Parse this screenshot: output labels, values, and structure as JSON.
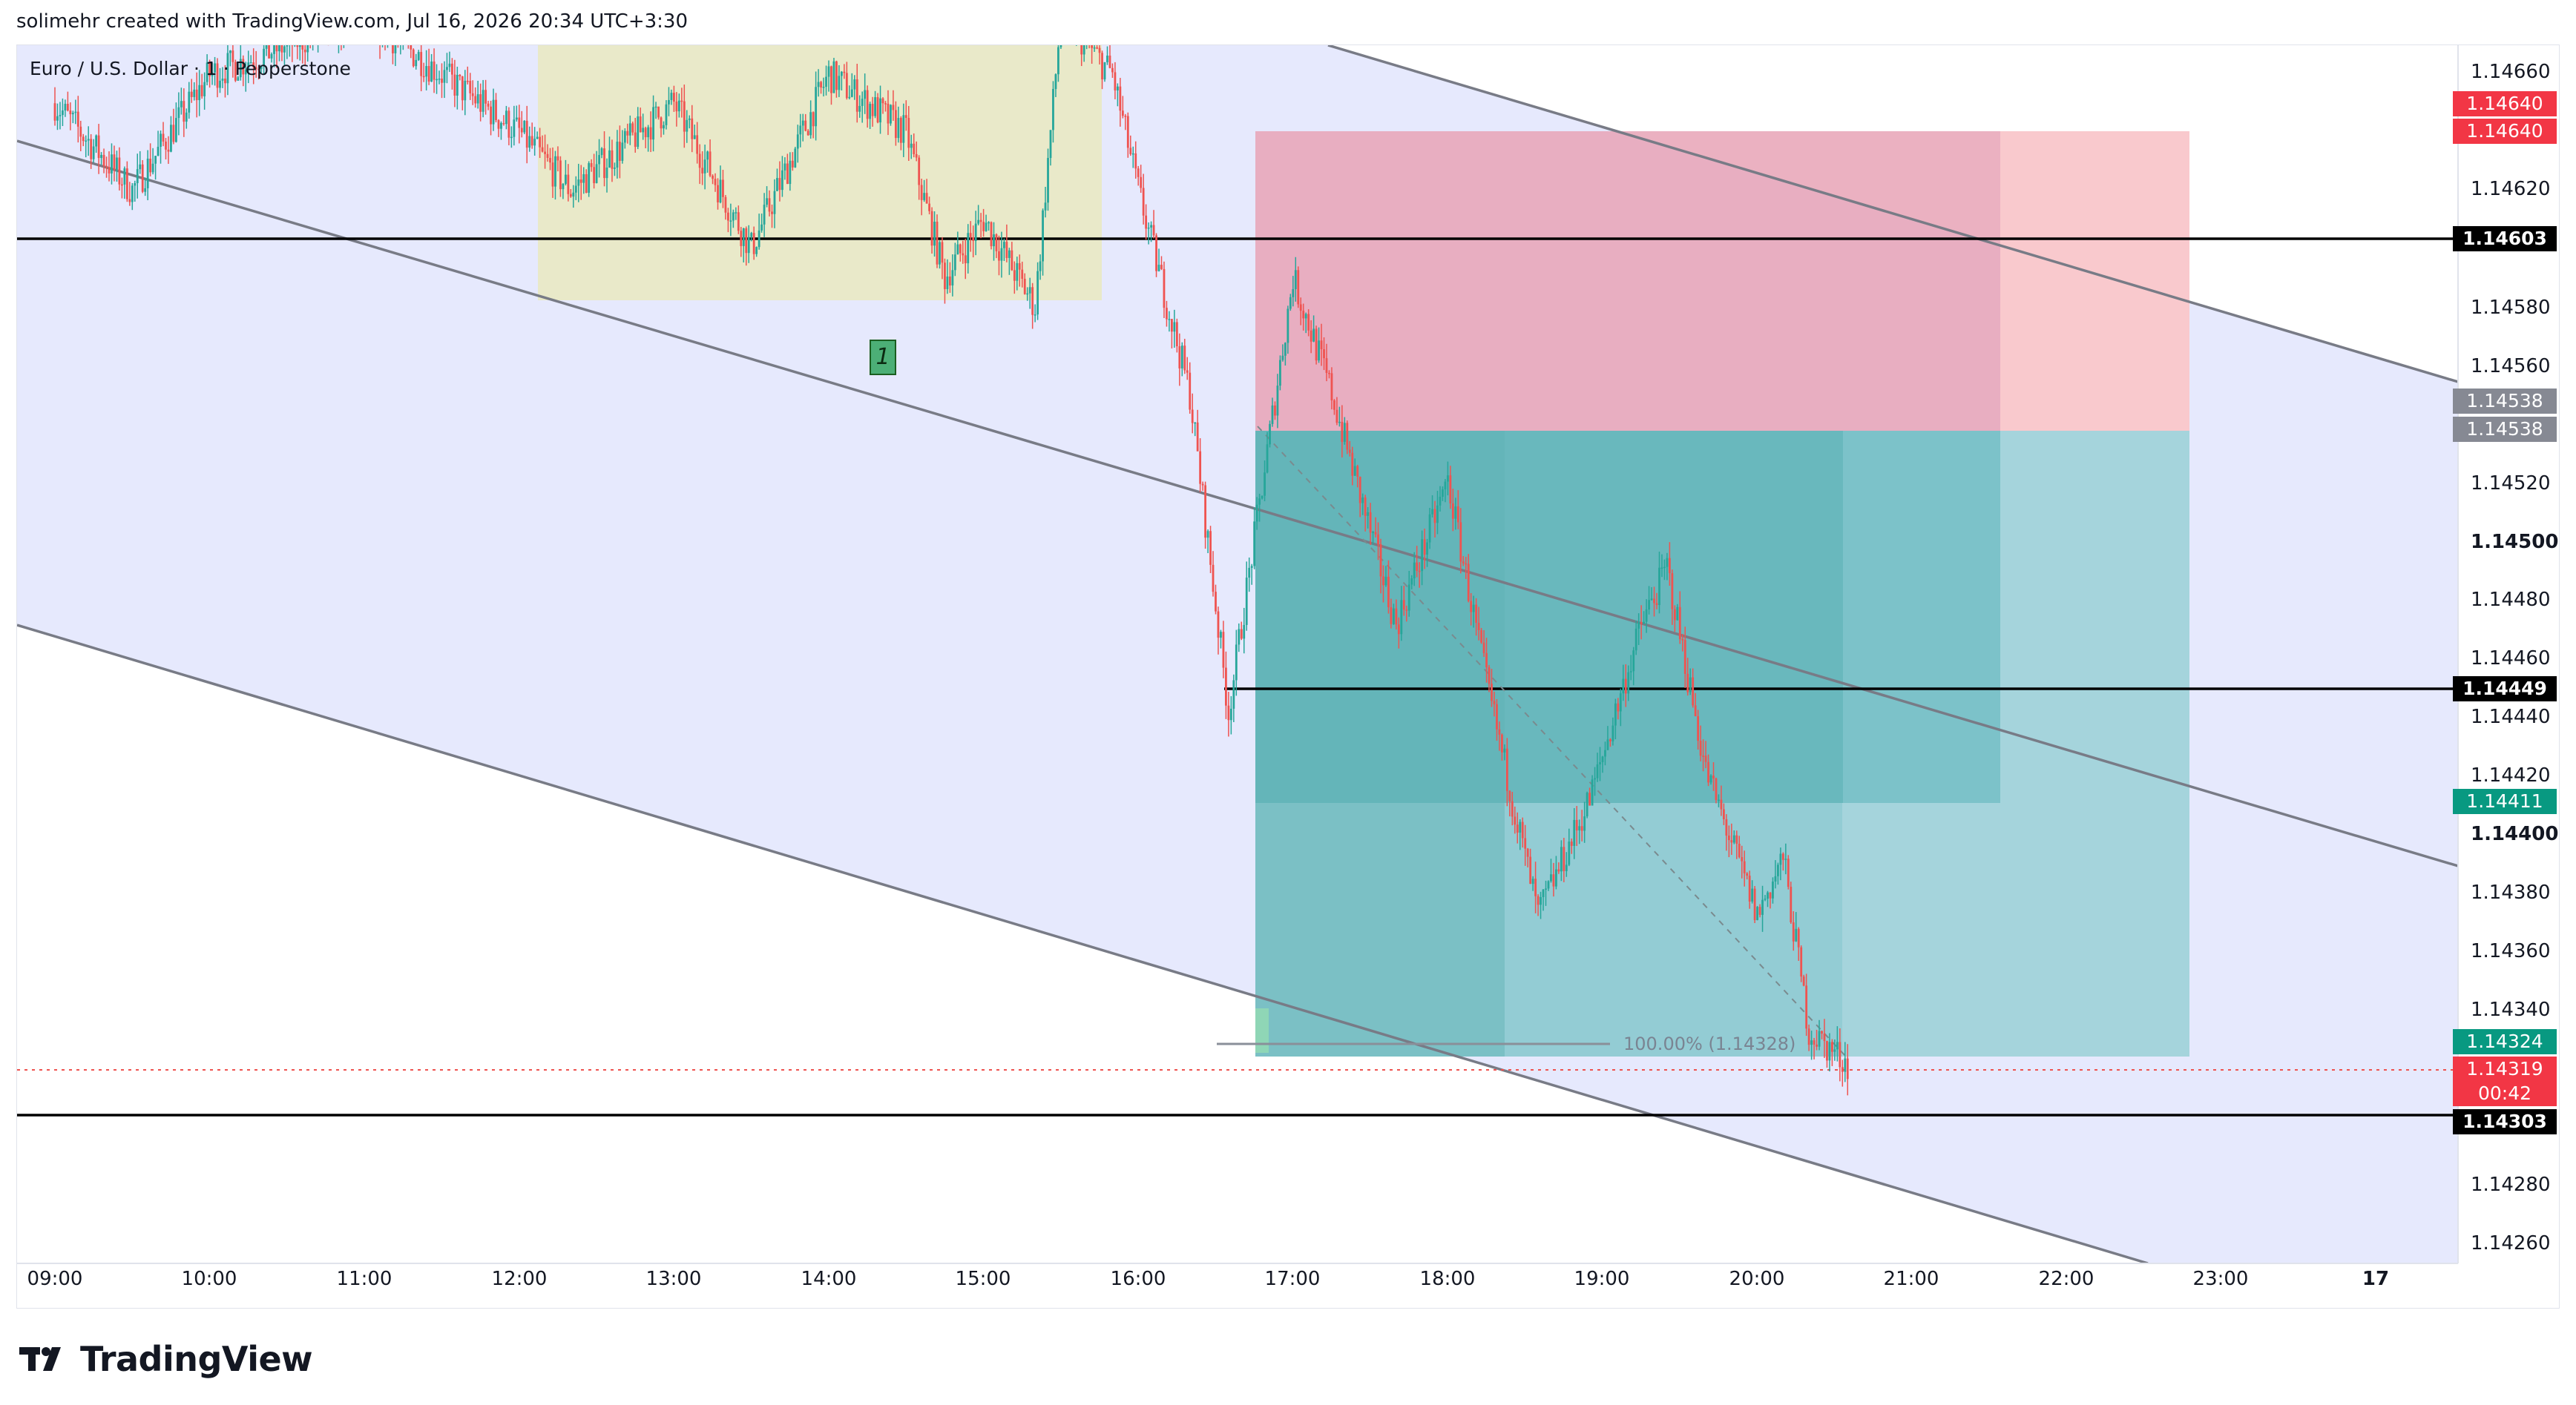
{
  "header": {
    "text": "solimehr created with TradingView.com, Jul 16, 2026 20:34 UTC+3:30"
  },
  "symbol": {
    "text": "Euro / U.S. Dollar · 1 · Pepperstone"
  },
  "marker": {
    "text": "1"
  },
  "fib": {
    "text": "100.00% (1.14328)"
  },
  "price_axis": {
    "ticks": [
      "1.14660",
      "1.14620",
      "1.14580",
      "1.14560",
      "1.14520",
      "1.14500",
      "1.14480",
      "1.14460",
      "1.14440",
      "1.14420",
      "1.14400",
      "1.14380",
      "1.14360",
      "1.14340",
      "1.14280",
      "1.14260"
    ],
    "labels": {
      "stop_1": "1.14640",
      "stop_2": "1.14640",
      "level_top": "1.14603",
      "entry_1": "1.14538",
      "entry_2": "1.14538",
      "level_mid": "1.14449",
      "target_mid": "1.14411",
      "target_low": "1.14324",
      "current": "1.14319",
      "countdown": "00:42",
      "level_bottom": "1.14303"
    }
  },
  "time_axis": [
    "09:00",
    "10:00",
    "11:00",
    "12:00",
    "13:00",
    "14:00",
    "15:00",
    "16:00",
    "17:00",
    "18:00",
    "19:00",
    "20:00",
    "21:00",
    "22:00",
    "23:00",
    "17"
  ],
  "logo": {
    "text": "TradingView"
  },
  "colors": {
    "up": "#26a69a",
    "down": "#ef5350",
    "channel": "#e6e9fd",
    "stop_zone": "#f7b6bb",
    "target_zone": "#7ec3cf"
  },
  "chart_data": {
    "type": "candlestick",
    "title": "Euro / U.S. Dollar · 1 · Pepperstone",
    "ylim": [
      1.1425,
      1.1467
    ],
    "xlim": [
      "08:55",
      "23:45"
    ],
    "horizontal_levels": [
      1.14603,
      1.14449,
      1.14303
    ],
    "position": {
      "entry": 1.14538,
      "stop": 1.1464,
      "target1": 1.14411,
      "target2": 1.14324
    },
    "current_price": 1.14319,
    "fib_level": {
      "label": "100.00%",
      "value": 1.14328
    },
    "price_path": [
      [
        "09:00",
        1.1465
      ],
      [
        "09:30",
        1.1462
      ],
      [
        "10:00",
        1.1466
      ],
      [
        "11:00",
        1.1468
      ],
      [
        "12:00",
        1.1464
      ],
      [
        "12:20",
        1.1462
      ],
      [
        "13:00",
        1.1465
      ],
      [
        "13:30",
        1.146
      ],
      [
        "14:00",
        1.1466
      ],
      [
        "14:30",
        1.1464
      ],
      [
        "14:45",
        1.1459
      ],
      [
        "15:00",
        1.1461
      ],
      [
        "15:20",
        1.1458
      ],
      [
        "15:30",
        1.1468
      ],
      [
        "15:50",
        1.1466
      ],
      [
        "16:00",
        1.1462
      ],
      [
        "16:20",
        1.1455
      ],
      [
        "16:35",
        1.1444
      ],
      [
        "16:50",
        1.1453
      ],
      [
        "17:00",
        1.1459
      ],
      [
        "17:15",
        1.1455
      ],
      [
        "17:40",
        1.1447
      ],
      [
        "18:00",
        1.1452
      ],
      [
        "18:15",
        1.1445
      ],
      [
        "18:35",
        1.1437
      ],
      [
        "18:55",
        1.1441
      ],
      [
        "19:15",
        1.1447
      ],
      [
        "19:25",
        1.1449
      ],
      [
        "19:40",
        1.1442
      ],
      [
        "20:00",
        1.1437
      ],
      [
        "20:10",
        1.1439
      ],
      [
        "20:20",
        1.1433
      ],
      [
        "20:35",
        1.14319
      ]
    ]
  }
}
